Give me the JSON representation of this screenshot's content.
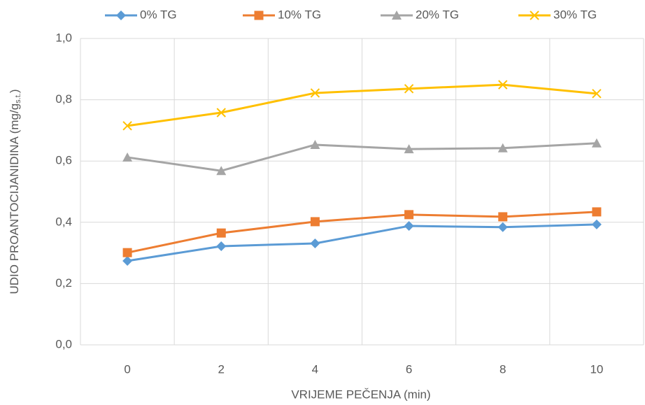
{
  "chart_data": {
    "type": "line",
    "x_label": "VRIJEME PEČENJA (min)",
    "y_label": [
      "UDIO PROANTOCIJANIDINA (mg/g",
      "s.t.",
      ")"
    ],
    "categories": [
      "0",
      "2",
      "4",
      "6",
      "8",
      "10"
    ],
    "series": [
      {
        "name": "0% TG",
        "color": "#5b9bd5",
        "marker": "diamond",
        "values": [
          0.274,
          0.322,
          0.331,
          0.388,
          0.384,
          0.393
        ]
      },
      {
        "name": "10% TG",
        "color": "#ed7d31",
        "marker": "square",
        "values": [
          0.301,
          0.365,
          0.402,
          0.425,
          0.418,
          0.434
        ]
      },
      {
        "name": "20% TG",
        "color": "#a5a5a5",
        "marker": "triangle",
        "values": [
          0.612,
          0.568,
          0.653,
          0.639,
          0.642,
          0.658
        ]
      },
      {
        "name": "30% TG",
        "color": "#ffc000",
        "marker": "x",
        "values": [
          0.715,
          0.758,
          0.822,
          0.836,
          0.849,
          0.82
        ]
      }
    ],
    "ylim": [
      0,
      1
    ],
    "yticks": [
      {
        "value": 0,
        "label": "0,0"
      },
      {
        "value": 0.2,
        "label": "0,2"
      },
      {
        "value": 0.4,
        "label": "0,4"
      },
      {
        "value": 0.6,
        "label": "0,6"
      },
      {
        "value": 0.8,
        "label": "0,8"
      },
      {
        "value": 1,
        "label": "1,0"
      }
    ],
    "grid": true,
    "legend": "top"
  }
}
